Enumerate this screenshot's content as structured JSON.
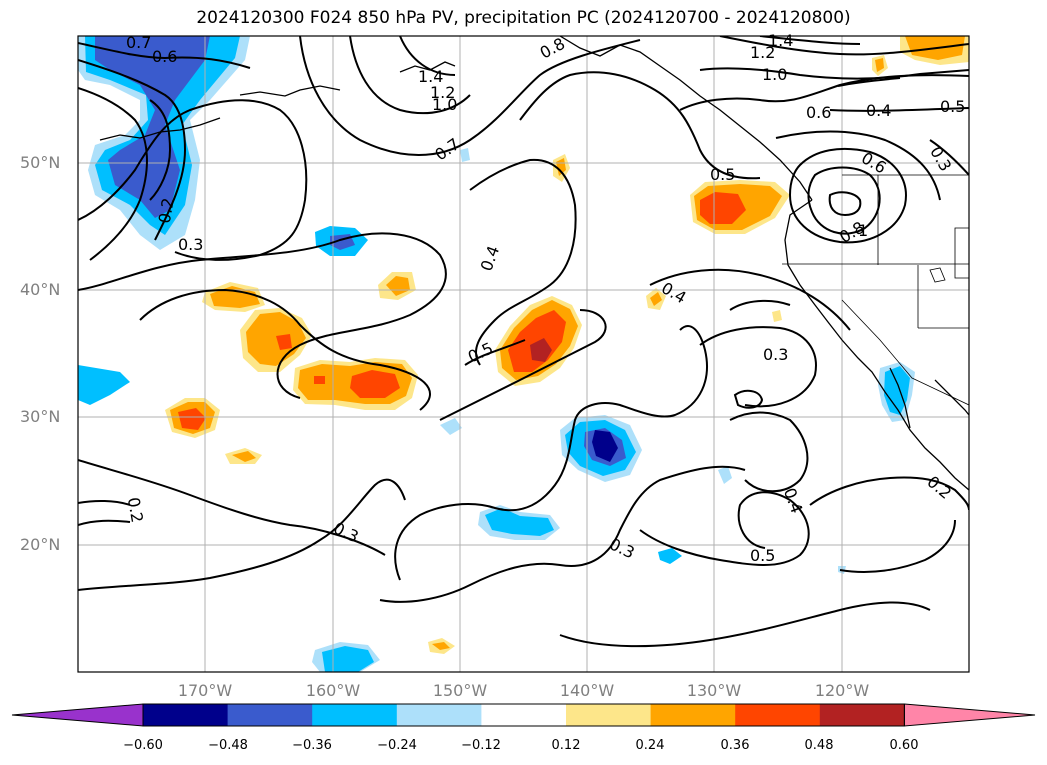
{
  "title": "2024120300 F024 850 hPa PV, precipitation PC (2024120700 - 2024120800)",
  "map": {
    "lat_labels": [
      {
        "label": "50°N",
        "lat": 50
      },
      {
        "label": "40°N",
        "lat": 40
      },
      {
        "label": "30°N",
        "lat": 30
      },
      {
        "label": "20°N",
        "lat": 20
      }
    ],
    "lon_labels": [
      {
        "label": "170°W",
        "lon": -170
      },
      {
        "label": "160°W",
        "lon": -160
      },
      {
        "label": "150°W",
        "lon": -150
      },
      {
        "label": "140°W",
        "lon": -140
      },
      {
        "label": "130°W",
        "lon": -130
      },
      {
        "label": "120°W",
        "lon": -120
      }
    ],
    "contour_labels": [
      "0.7",
      "0.6",
      "0.8",
      "1.4",
      "1.2",
      "1.0",
      "1.4",
      "1.2",
      "1.0",
      "0.6",
      "0.4",
      "0.5",
      "0.7",
      "0.3",
      "0.2",
      "0.3",
      "0.5",
      "0.6",
      "0.8",
      "1",
      "0.4",
      "0.4",
      "0.5",
      "0.3",
      "0.2",
      "0.3",
      "0.3",
      "0.4",
      "0.5",
      "0.2"
    ]
  },
  "colorbar": {
    "colors": [
      "#9932CC",
      "#00008B",
      "#3A5BCD",
      "#00BFFF",
      "#ADE0FA",
      "#FFFFFF",
      "#FDE68A",
      "#FFA500",
      "#FF4500",
      "#B22222",
      "#FF85A8"
    ],
    "ticks": [
      "−0.60",
      "−0.48",
      "−0.36",
      "−0.24",
      "−0.12",
      "0.12",
      "0.24",
      "0.36",
      "0.48",
      "0.60"
    ]
  }
}
